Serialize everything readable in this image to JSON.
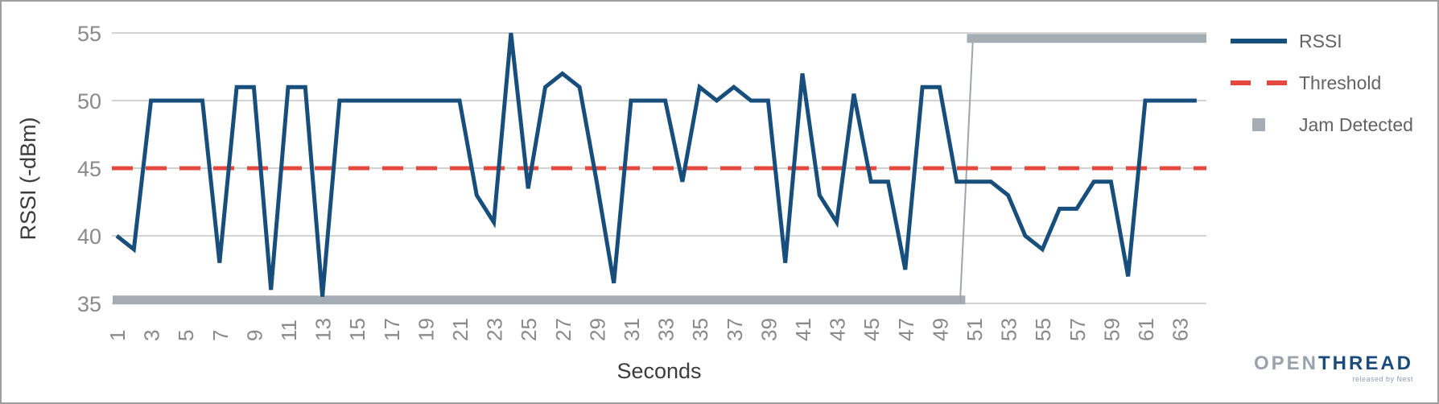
{
  "chart_data": {
    "type": "line",
    "title": "",
    "xlabel": "Seconds",
    "ylabel": "RSSI (-dBm)",
    "ylim": [
      35,
      55
    ],
    "y_ticks": [
      35,
      40,
      45,
      50,
      55
    ],
    "x": [
      1,
      2,
      3,
      4,
      5,
      6,
      7,
      8,
      9,
      10,
      11,
      12,
      13,
      14,
      15,
      16,
      17,
      18,
      19,
      20,
      21,
      22,
      23,
      24,
      25,
      26,
      27,
      28,
      29,
      30,
      31,
      32,
      33,
      34,
      35,
      36,
      37,
      38,
      39,
      40,
      41,
      42,
      43,
      44,
      45,
      46,
      47,
      48,
      49,
      50,
      51,
      52,
      53,
      54,
      55,
      56,
      57,
      58,
      59,
      60,
      61,
      62,
      63,
      64
    ],
    "x_tick_labels": [
      "1",
      "3",
      "5",
      "7",
      "9",
      "11",
      "13",
      "15",
      "17",
      "19",
      "21",
      "23",
      "25",
      "27",
      "29",
      "31",
      "33",
      "35",
      "37",
      "39",
      "41",
      "43",
      "45",
      "47",
      "49",
      "51",
      "53",
      "55",
      "57",
      "59",
      "61",
      "63"
    ],
    "grid": true,
    "legend_position": "top-right",
    "series": [
      {
        "name": "RSSI",
        "style": "solid-line",
        "color": "#174E7C",
        "values": [
          40,
          39,
          50,
          50,
          50,
          50,
          38,
          51,
          51,
          36,
          51,
          51,
          35.5,
          50,
          50,
          50,
          50,
          50,
          50,
          50,
          50,
          43,
          41,
          55,
          43.5,
          51,
          52,
          51,
          44,
          36.5,
          50,
          50,
          50,
          44,
          51,
          50,
          51,
          50,
          50,
          38,
          52,
          43,
          41,
          50.5,
          44,
          44,
          37.5,
          51,
          51,
          44,
          44,
          44,
          43,
          40,
          39,
          42,
          42,
          44,
          44,
          37,
          50,
          50,
          50,
          50
        ]
      },
      {
        "name": "Threshold",
        "style": "dashed-line",
        "color": "#E5493D",
        "value": 45
      },
      {
        "name": "Jam Detected",
        "style": "thick-step",
        "color": "#A4ADB3",
        "low_level": 35.25,
        "high_level": 54.6,
        "jump_at_second": 50.5
      }
    ]
  },
  "legend": {
    "items": [
      {
        "label": "RSSI",
        "swatch": "solid-line",
        "color": "#174E7C"
      },
      {
        "label": "Threshold",
        "swatch": "dashed-line",
        "color": "#E5493D"
      },
      {
        "label": "Jam Detected",
        "swatch": "square",
        "color": "#A4ADB3"
      }
    ]
  },
  "branding": {
    "logo_open": "OPEN",
    "logo_thread": "THREAD",
    "tagline": "released by Nest"
  }
}
